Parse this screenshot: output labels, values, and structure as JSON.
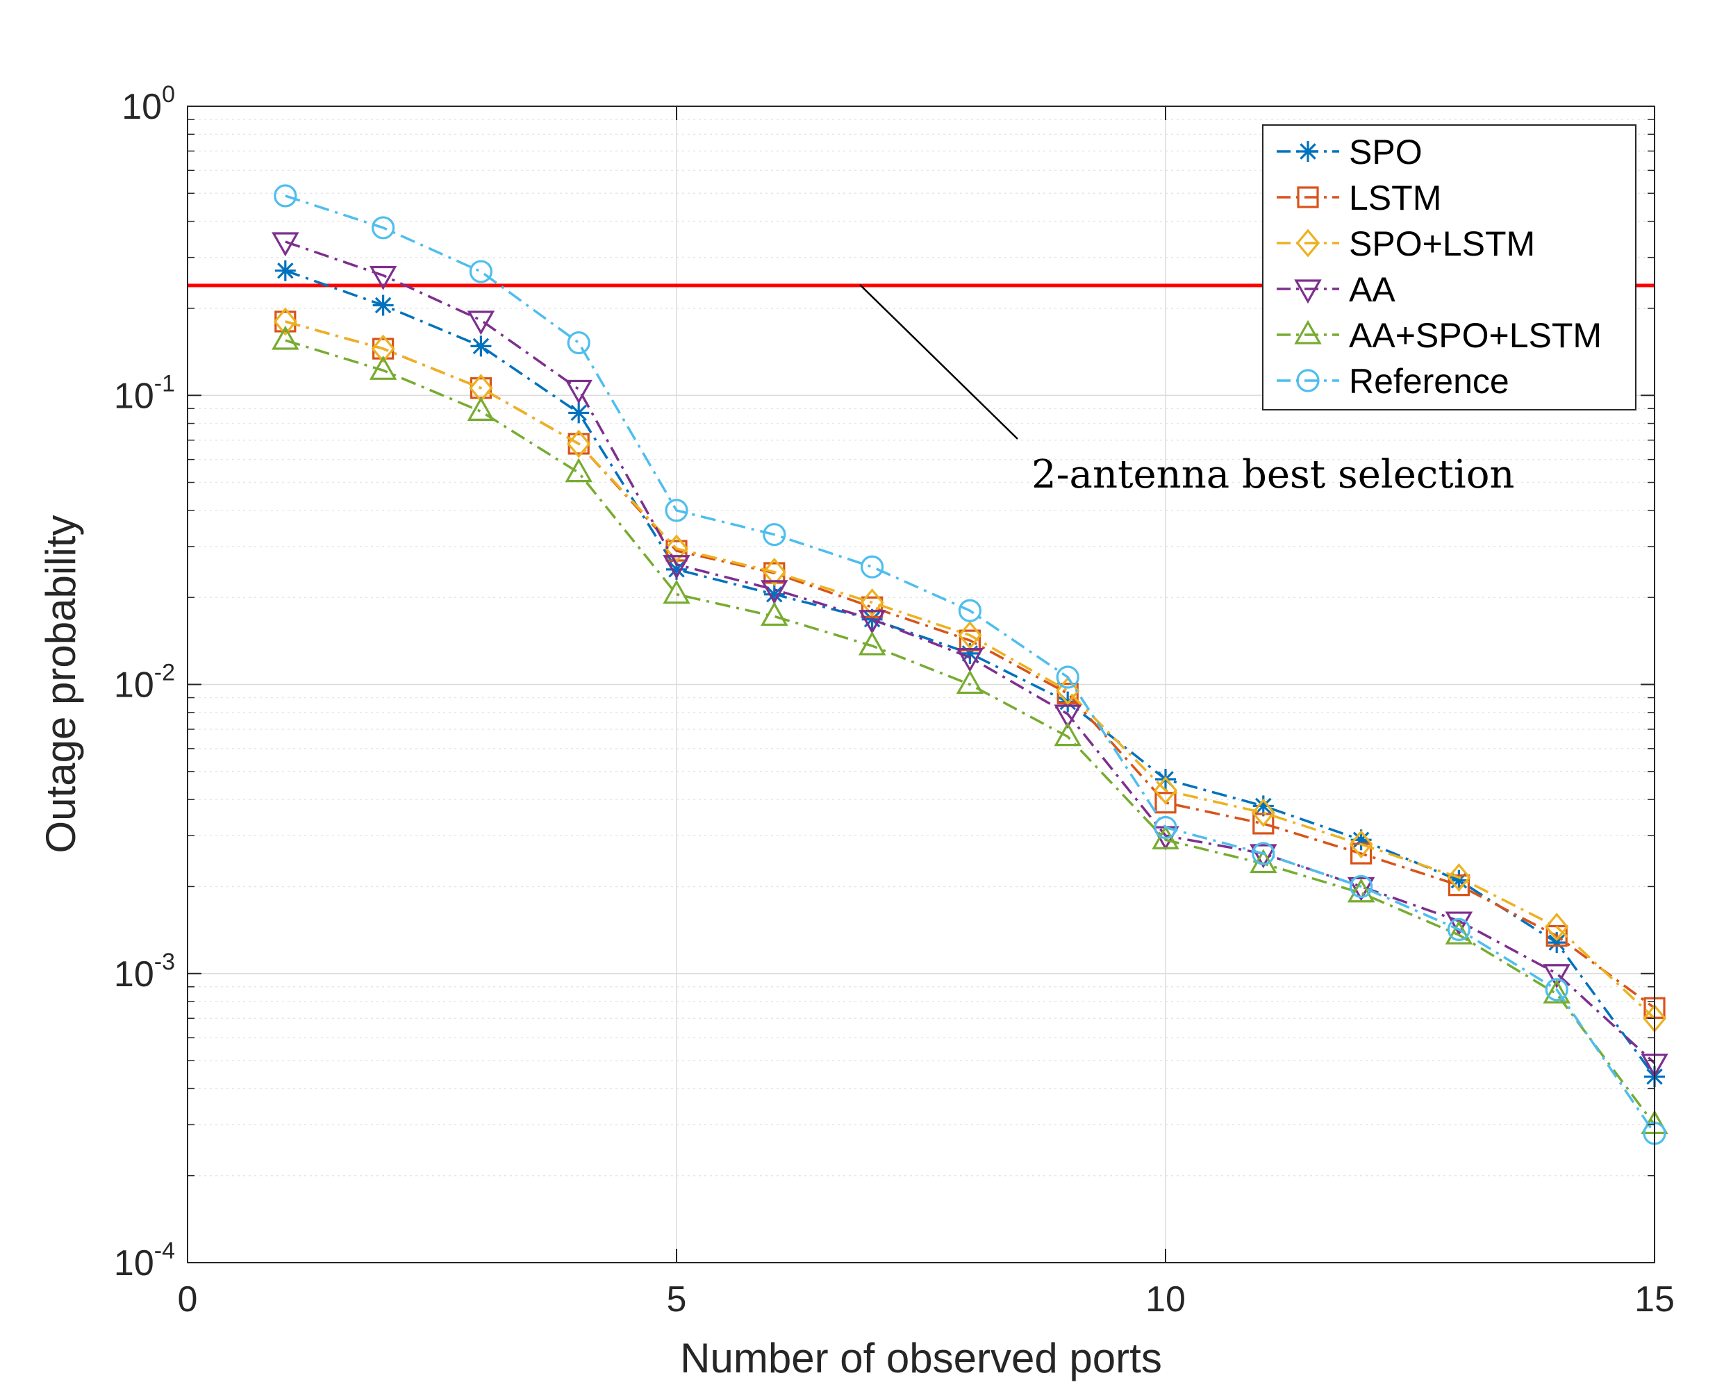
{
  "chart_data": {
    "type": "line",
    "title": "",
    "xlabel": "Number of observed ports",
    "ylabel": "Outage probability",
    "xlim": [
      0,
      15
    ],
    "ylim": [
      0.0001,
      1
    ],
    "yscale": "log",
    "grid": true,
    "x_ticks": [
      0,
      5,
      10,
      15
    ],
    "x_tick_labels": [
      "0",
      "5",
      "10",
      "15"
    ],
    "y_ticks": [
      0.0001,
      0.001,
      0.01,
      0.1,
      1
    ],
    "y_tick_labels": [
      {
        "base": "10",
        "exp": "-4"
      },
      {
        "base": "10",
        "exp": "-3"
      },
      {
        "base": "10",
        "exp": "-2"
      },
      {
        "base": "10",
        "exp": "-1"
      },
      {
        "base": "10",
        "exp": "0"
      }
    ],
    "x": [
      1,
      2,
      3,
      4,
      5,
      6,
      7,
      8,
      9,
      10,
      11,
      12,
      13,
      14,
      15
    ],
    "series": [
      {
        "name": "SPO",
        "color": "#0072BD",
        "marker": "asterisk",
        "values": [
          0.27,
          0.205,
          0.148,
          0.087,
          0.025,
          0.0205,
          0.0168,
          0.0128,
          0.0087,
          0.0047,
          0.0038,
          0.0029,
          0.0021,
          0.00128,
          0.00044
        ]
      },
      {
        "name": "LSTM",
        "color": "#D95319",
        "marker": "square",
        "values": [
          0.18,
          0.145,
          0.106,
          0.068,
          0.029,
          0.0243,
          0.0185,
          0.0142,
          0.0093,
          0.0039,
          0.0033,
          0.0026,
          0.00202,
          0.00135,
          0.00076
        ]
      },
      {
        "name": "SPO+LSTM",
        "color": "#EDB120",
        "marker": "diamond",
        "values": [
          0.18,
          0.145,
          0.106,
          0.068,
          0.0295,
          0.0245,
          0.0192,
          0.0148,
          0.0095,
          0.0043,
          0.0036,
          0.0028,
          0.00215,
          0.00145,
          0.0007
        ]
      },
      {
        "name": "AA",
        "color": "#7E2F8E",
        "marker": "triangle-down",
        "values": [
          0.34,
          0.26,
          0.182,
          0.105,
          0.026,
          0.0213,
          0.0168,
          0.0124,
          0.0079,
          0.003,
          0.0026,
          0.002,
          0.00152,
          0.001,
          0.00049
        ]
      },
      {
        "name": "AA+SPO+LSTM",
        "color": "#77AC30",
        "marker": "triangle-up",
        "values": [
          0.155,
          0.122,
          0.088,
          0.054,
          0.0205,
          0.0172,
          0.0136,
          0.01,
          0.0066,
          0.0029,
          0.0024,
          0.0019,
          0.00136,
          0.00085,
          0.0003
        ]
      },
      {
        "name": "Reference",
        "color": "#4DBEEE",
        "marker": "circle",
        "values": [
          0.49,
          0.38,
          0.268,
          0.152,
          0.04,
          0.033,
          0.0255,
          0.018,
          0.0106,
          0.0032,
          0.0026,
          0.002,
          0.00142,
          0.00088,
          0.00028
        ]
      }
    ],
    "reference_line": {
      "label": "2-antenna best selection",
      "value": 0.24,
      "color": "#FF0000"
    },
    "legend_position": "top-right"
  }
}
